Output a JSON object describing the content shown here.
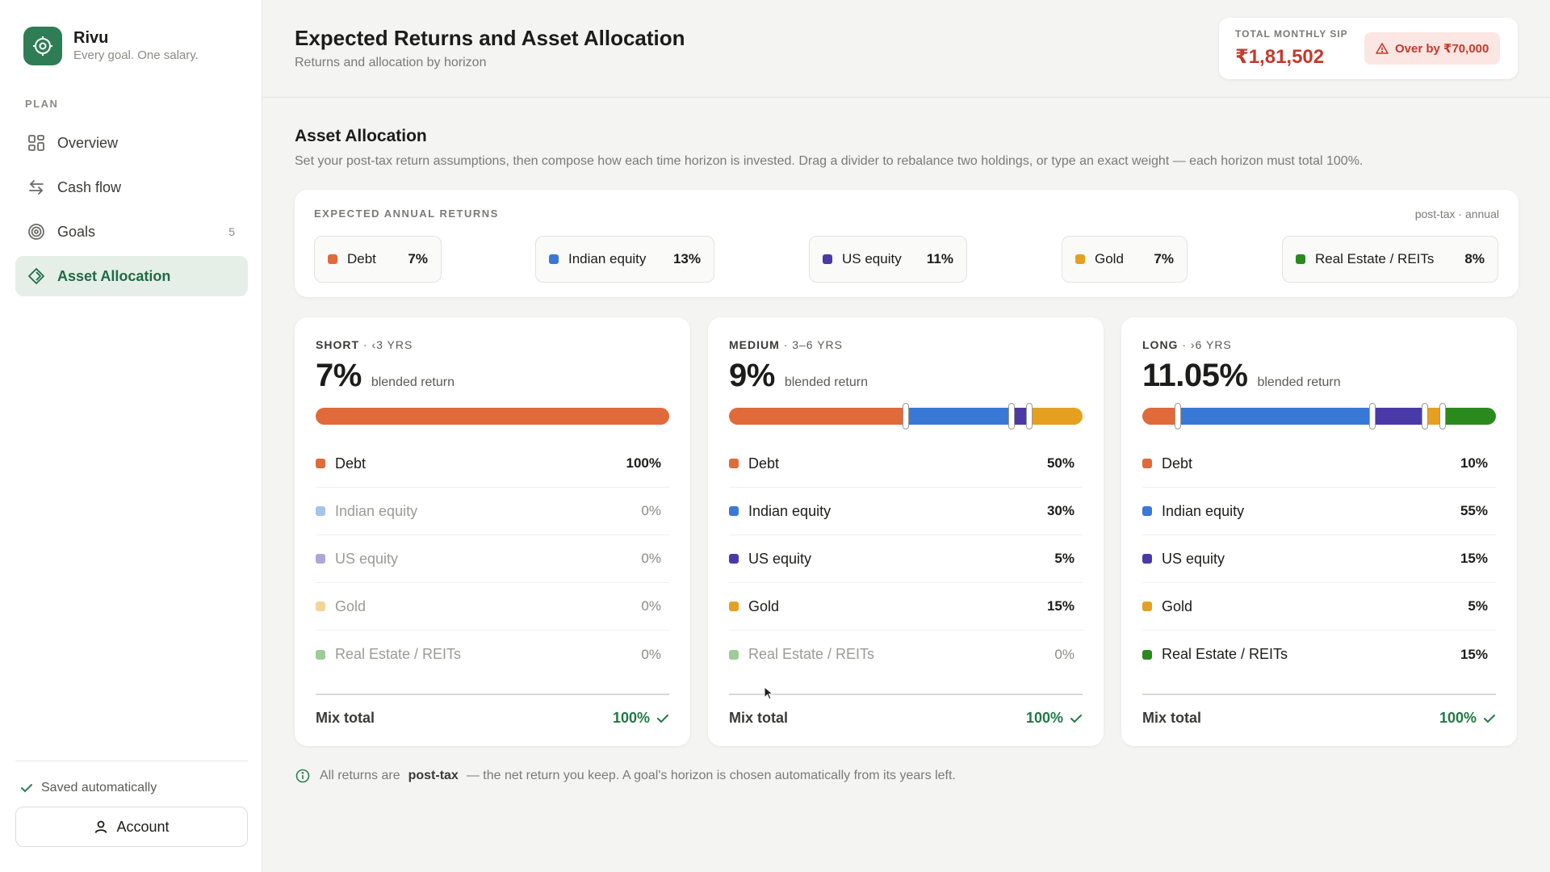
{
  "brand": {
    "name": "Rivu",
    "tagline": "Every goal. One salary."
  },
  "sidebar": {
    "section": "PLAN",
    "items": [
      {
        "label": "Overview",
        "icon": "grid-icon"
      },
      {
        "label": "Cash flow",
        "icon": "arrows-icon"
      },
      {
        "label": "Goals",
        "icon": "target-icon",
        "count": "5"
      },
      {
        "label": "Asset Allocation",
        "icon": "diamond-icon",
        "active": true
      }
    ],
    "saved": "Saved automatically",
    "account": "Account"
  },
  "header": {
    "title": "Expected Returns and Asset Allocation",
    "subtitle": "Returns and allocation by horizon",
    "sip_label": "TOTAL MONTHLY SIP",
    "sip_value": "₹1,81,502",
    "over_badge": "Over by ₹70,000"
  },
  "section": {
    "title": "Asset Allocation",
    "description": "Set your post-tax return assumptions, then compose how each time horizon is invested. Drag a divider to rebalance two holdings, or type an exact weight — each horizon must total 100%."
  },
  "returns": {
    "label": "EXPECTED ANNUAL RETURNS",
    "note": "post-tax · annual",
    "assets": [
      {
        "name": "Debt",
        "value": "7%",
        "color": "#e06a3a"
      },
      {
        "name": "Indian equity",
        "value": "13%",
        "color": "#3a78d8"
      },
      {
        "name": "US equity",
        "value": "11%",
        "color": "#4a3aa8"
      },
      {
        "name": "Gold",
        "value": "7%",
        "color": "#e6a020"
      },
      {
        "name": "Real Estate / REITs",
        "value": "8%",
        "color": "#2a8a1e"
      }
    ]
  },
  "horizons": [
    {
      "name": "SHORT",
      "range": " · ‹3 YRS",
      "blended": "7%",
      "blended_label": "blended return",
      "weights": [
        100,
        0,
        0,
        0,
        0
      ],
      "labels": [
        "100%",
        "0%",
        "0%",
        "0%",
        "0%"
      ],
      "mix_label": "Mix total",
      "mix_total": "100%"
    },
    {
      "name": "MEDIUM",
      "range": " · 3–6 YRS",
      "blended": "9%",
      "blended_label": "blended return",
      "weights": [
        50,
        30,
        5,
        15,
        0
      ],
      "labels": [
        "50%",
        "30%",
        "5%",
        "15%",
        "0%"
      ],
      "mix_label": "Mix total",
      "mix_total": "100%"
    },
    {
      "name": "LONG",
      "range": " · ›6 YRS",
      "blended": "11.05%",
      "blended_label": "blended return",
      "weights": [
        10,
        55,
        15,
        5,
        15
      ],
      "labels": [
        "10%",
        "55%",
        "15%",
        "5%",
        "15%"
      ],
      "mix_label": "Mix total",
      "mix_total": "100%"
    }
  ],
  "footnote": {
    "pre": "All returns are",
    "bold": "post-tax",
    "post": "— the net return you keep. A goal's horizon is chosen automatically from its years left."
  }
}
